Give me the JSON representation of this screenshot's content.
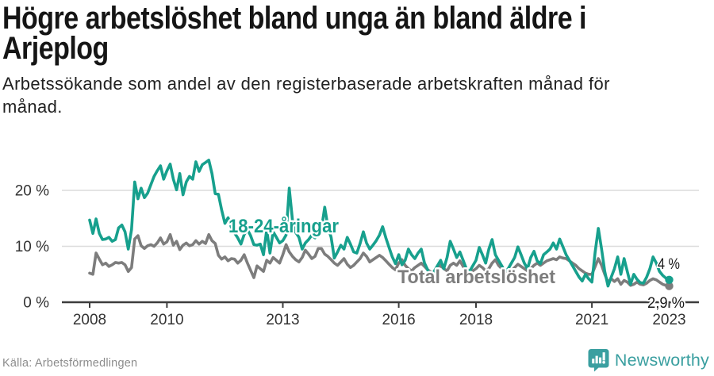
{
  "header": {
    "title_lines": [
      "Högre arbetslöshet bland unga än bland äldre i",
      "Arjeplog"
    ],
    "subtitle_lines": [
      "Arbetssökande som andel av den registerbaserade arbetskraften månad för",
      "månad."
    ]
  },
  "footer": {
    "source": "Källa: Arbetsförmedlingen",
    "brand": "Newsworthy"
  },
  "colors": {
    "young_series": "#17a08d",
    "total_series": "#7d7d7d",
    "gridline": "#dcdcdc",
    "axis": "#3d3d3d",
    "tick_text": "#333333",
    "end_label_text": "#1a1a1a",
    "brand_teal": "#3a9fa0"
  },
  "chart_data": {
    "type": "line",
    "title": "Högre arbetslöshet bland unga än bland äldre i Arjeplog",
    "subtitle": "Arbetssökande som andel av den registerbaserade arbetskraften månad för månad.",
    "x_unit": "month",
    "x_start": "2008-01",
    "x_end": "2023-01",
    "xlim": [
      2008,
      2023.08
    ],
    "ylim": [
      0,
      27
    ],
    "grid": "horizontal",
    "x_ticks": [
      2008,
      2010,
      2013,
      2016,
      2018,
      2021,
      2023
    ],
    "y_ticks": [
      {
        "value": 0,
        "label": "0 %"
      },
      {
        "value": 10,
        "label": "10 %"
      },
      {
        "value": 20,
        "label": "20 %"
      }
    ],
    "series": [
      {
        "name": "18-24-åringar",
        "color": "#17a08d",
        "end_label": "4 %",
        "end_value": 4.0,
        "values": [
          14.7,
          12.3,
          14.9,
          12.3,
          11.2,
          11.3,
          11.6,
          10.9,
          11.2,
          13.3,
          13.8,
          12.6,
          9.5,
          13.0,
          21.5,
          18.5,
          20.4,
          18.7,
          19.5,
          21.0,
          22.5,
          23.5,
          24.4,
          22.0,
          23.5,
          24.7,
          22.0,
          20.1,
          23.0,
          19.2,
          21.5,
          22.5,
          22.0,
          25.1,
          23.4,
          24.6,
          25.0,
          25.4,
          23.0,
          19.4,
          19.3,
          16.5,
          14.1,
          15.1,
          13.4,
          12.4,
          11.5,
          10.4,
          12.1,
          13.0,
          11.9,
          10.3,
          10.2,
          10.4,
          8.5,
          13.0,
          8.8,
          12.6,
          11.6,
          10.6,
          11.0,
          12.0,
          20.4,
          14.6,
          12.5,
          11.6,
          9.5,
          10.6,
          11.2,
          12.0,
          11.5,
          12.2,
          13.1,
          17.0,
          13.5,
          11.6,
          7.9,
          9.0,
          10.2,
          9.5,
          11.6,
          10.4,
          9.0,
          8.8,
          10.5,
          12.6,
          10.6,
          9.5,
          10.2,
          11.0,
          12.0,
          13.5,
          11.5,
          9.8,
          8.1,
          6.9,
          8.5,
          6.7,
          7.5,
          9.5,
          8.5,
          7.8,
          8.8,
          9.5,
          7.0,
          5.8,
          4.0,
          5.5,
          6.5,
          7.5,
          6.0,
          8.0,
          10.9,
          9.5,
          8.0,
          9.0,
          7.5,
          6.0,
          5.5,
          6.5,
          7.5,
          9.8,
          8.5,
          7.0,
          9.5,
          11.2,
          8.5,
          7.5,
          6.5,
          5.5,
          6.0,
          7.0,
          8.0,
          9.9,
          8.5,
          7.0,
          6.0,
          8.0,
          9.1,
          7.4,
          6.9,
          8.5,
          9.0,
          9.5,
          10.6,
          9.5,
          11.3,
          9.9,
          8.5,
          7.5,
          6.5,
          5.5,
          4.5,
          3.8,
          5.0,
          4.2,
          3.6,
          9.0,
          13.2,
          9.5,
          5.5,
          2.9,
          4.5,
          6.0,
          8.1,
          5.0,
          7.8,
          5.5,
          3.2,
          5.0,
          4.1,
          3.5,
          3.4,
          4.5,
          6.0,
          8.1,
          7.0,
          5.5,
          4.8,
          4.3,
          4.0
        ]
      },
      {
        "name": "Total arbetslöshet",
        "color": "#7d7d7d",
        "end_label": "2,9 %",
        "end_value": 2.9,
        "values": [
          5.2,
          5.0,
          8.8,
          7.7,
          6.7,
          7.0,
          6.4,
          6.7,
          7.1,
          7.0,
          7.1,
          6.7,
          5.5,
          6.2,
          11.3,
          11.9,
          10.1,
          9.6,
          10.1,
          10.3,
          10.0,
          10.6,
          11.5,
          10.4,
          10.8,
          12.1,
          10.2,
          10.9,
          9.4,
          10.2,
          10.6,
          10.1,
          10.3,
          11.0,
          10.4,
          10.9,
          10.5,
          12.1,
          11.0,
          10.5,
          8.4,
          7.7,
          8.1,
          7.4,
          7.8,
          7.7,
          7.0,
          7.5,
          8.5,
          7.0,
          5.7,
          4.4,
          6.5,
          6.0,
          5.5,
          7.5,
          7.0,
          8.0,
          7.5,
          7.0,
          8.5,
          10.3,
          9.0,
          8.2,
          7.6,
          7.2,
          8.0,
          9.3,
          8.6,
          7.8,
          8.2,
          9.6,
          9.6,
          8.6,
          8.2,
          7.6,
          7.0,
          6.6,
          7.2,
          7.8,
          6.8,
          6.2,
          6.6,
          7.2,
          7.8,
          8.8,
          8.2,
          7.2,
          7.6,
          8.0,
          8.4,
          8.0,
          7.4,
          6.8,
          6.2,
          5.8,
          7.0,
          7.6,
          6.6,
          6.0,
          5.6,
          6.2,
          6.6,
          7.0,
          6.4,
          5.8,
          5.4,
          5.0,
          5.6,
          6.6,
          6.0,
          5.6,
          6.6,
          7.0,
          6.6,
          7.4,
          6.4,
          5.6,
          5.0,
          5.6,
          6.0,
          6.6,
          6.2,
          5.6,
          6.0,
          7.0,
          7.6,
          6.6,
          6.0,
          5.6,
          5.2,
          5.6,
          6.2,
          6.8,
          6.4,
          6.0,
          5.6,
          6.0,
          6.6,
          7.0,
          6.6,
          7.0,
          7.4,
          7.6,
          7.8,
          7.6,
          8.1,
          7.9,
          7.8,
          7.4,
          7.0,
          6.6,
          6.0,
          5.6,
          5.2,
          5.0,
          5.0,
          6.4,
          7.8,
          6.6,
          5.0,
          3.6,
          4.2,
          3.7,
          4.2,
          3.2,
          3.9,
          3.6,
          3.0,
          3.2,
          3.6,
          3.2,
          3.1,
          3.4,
          3.9,
          4.2,
          4.0,
          3.6,
          3.2,
          3.0,
          2.9
        ]
      }
    ]
  }
}
